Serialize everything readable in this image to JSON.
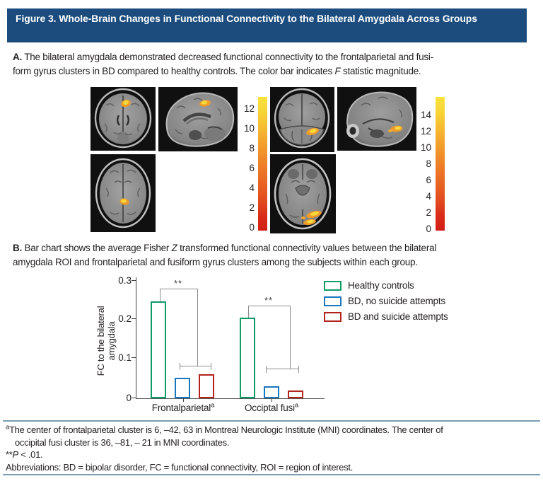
{
  "header": {
    "title": "Figure 3. Whole-Brain Changes in Functional Connectivity to the Bilateral Amygdala Across Groups"
  },
  "panel_a": {
    "label": "A.",
    "line1": " The bilateral amygdala demonstrated decreased functional connectivity to the frontalparietal and fusi-",
    "line2_pre": "form gyrus clusters in BD compared to healthy controls. The color bar indicates ",
    "f_symbol": "F",
    "line2_post": " statistic magnitude."
  },
  "colorbars": {
    "left": {
      "ticks": [
        "12",
        "10",
        "8",
        "6",
        "4",
        "2",
        "0"
      ]
    },
    "right": {
      "ticks": [
        "14",
        "12",
        "10",
        "8",
        "6",
        "4",
        "2",
        "0"
      ]
    }
  },
  "panel_b": {
    "label": "B.",
    "line1_pre": " Bar chart shows the average Fisher ",
    "z_symbol": "Z",
    "line1_post": " transformed functional connectivity values between the bilateral",
    "line2": "amygdala ROI and frontalparietal and fusiform gyrus clusters among the subjects within each group."
  },
  "chart_data": {
    "type": "bar",
    "categories": [
      "Frontalparietal",
      "Occiptal fusi"
    ],
    "category_superscript": "a",
    "series": [
      {
        "name": "Healthy controls",
        "color": "#0e9c63",
        "values": [
          0.24,
          0.2
        ]
      },
      {
        "name": "BD, no suicide attempts",
        "color": "#1b76bc",
        "values": [
          0.05,
          0.03
        ]
      },
      {
        "name": "BD and suicide attempts",
        "color": "#b2231c",
        "values": [
          0.06,
          0.02
        ]
      }
    ],
    "ylabel_line1": "FC to the bilateral",
    "ylabel_line2": "amygdala",
    "ylim": [
      0,
      0.3
    ],
    "yticks": [
      "0.3",
      "0.2",
      "0.1",
      "0"
    ],
    "significance": "**",
    "legend_position": "right",
    "grid": false
  },
  "footnotes": {
    "sup_a": "a",
    "line1": "The center of frontalparietal cluster is 6, –42, 63 in Montreal Neurologic Institute (MNI) coordinates. The center of",
    "line2": "occipital fusi cluster is 36, –81, – 21 in MNI coordinates.",
    "stars": "**",
    "p_symbol": "P",
    "p_rest": " < .01.",
    "abbreviations": "Abbreviations: BD = bipolar disorder, FC = functional connectivity, ROI = region of interest."
  },
  "colors": {
    "header_bg": "#1b4c7d",
    "rule": "#7b9fb2"
  }
}
